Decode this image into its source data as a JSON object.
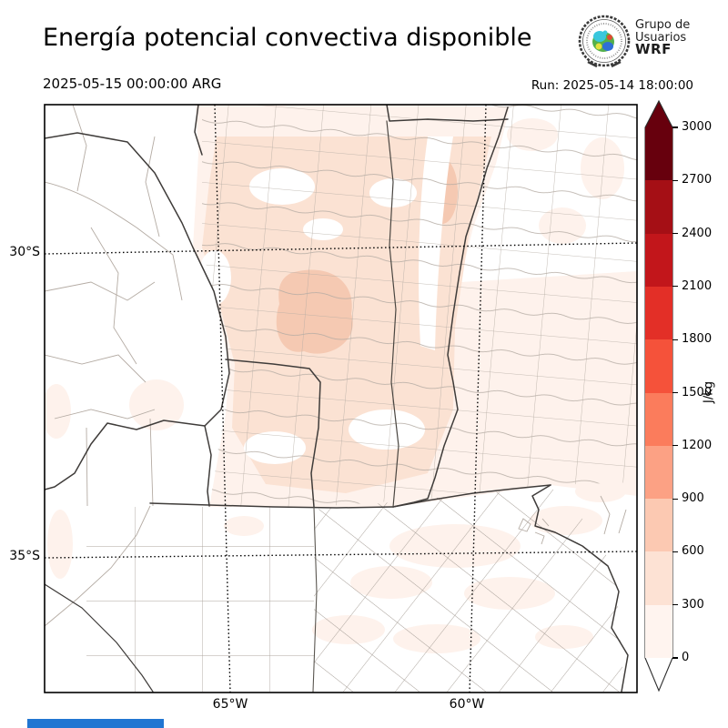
{
  "header": {
    "title": "Energía potencial convectiva disponible",
    "valid": "2025-05-15 00:00:00 ARG",
    "run": "Run: 2025-05-14 18:00:00"
  },
  "logo": {
    "line1": "Grupo de",
    "line2": "Usuarios",
    "line3": "WRF"
  },
  "map": {
    "lat_labels": [
      "30°S",
      "35°S"
    ],
    "lon_labels": [
      "65°W",
      "60°W"
    ],
    "fill_levels": {
      "level_0_300": "#fef2ec",
      "level_300_600": "#fbe2d3",
      "level_600_900": "#f5c9b2"
    },
    "boundary_colors": {
      "province": "#3f3c3a",
      "department": "#b4aba3",
      "graticule": "#000000"
    }
  },
  "colorbar": {
    "unit": "J/kg",
    "ticks": [
      "0",
      "300",
      "600",
      "900",
      "1200",
      "1500",
      "1800",
      "2100",
      "2400",
      "2700",
      "3000"
    ],
    "segments": [
      "#fff4ef",
      "#fde2d4",
      "#fcc9b2",
      "#fca184",
      "#fb7c5c",
      "#f5523a",
      "#e32f27",
      "#c2161b",
      "#a50f15",
      "#67000d"
    ],
    "over_color": "#67000d",
    "under_color": "#ffffff",
    "outline_color": "#2b2b2b"
  },
  "bottom_bar": {
    "color": "#2176d2"
  }
}
